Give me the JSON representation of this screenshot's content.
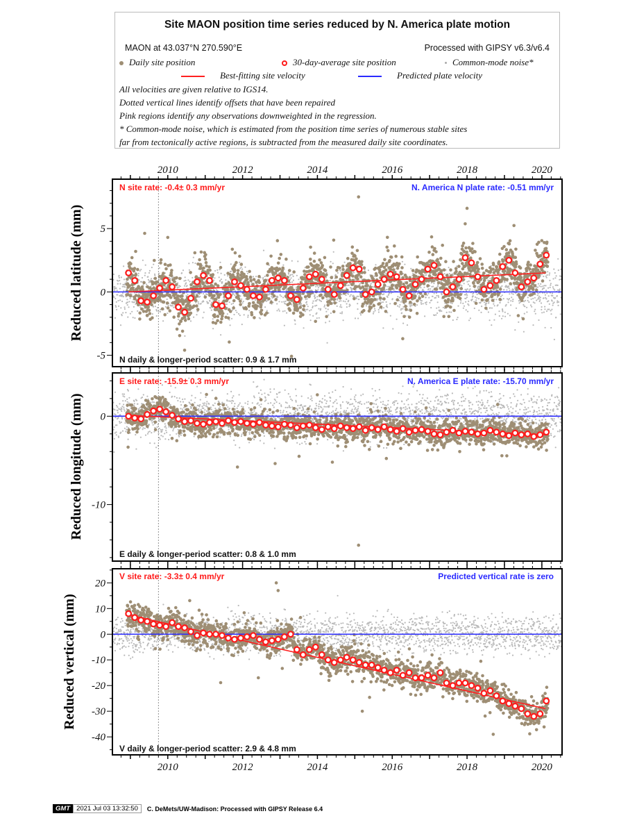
{
  "legend": {
    "title": "Site MAON position time series reduced by N. America plate motion",
    "site_location": "MAON at 43.037°N 270.590°E",
    "processing": "Processed with GIPSY v6.3/v6.4",
    "daily_label": "Daily site position",
    "avg_label": "30-day-average site position",
    "cm_label": "Common-mode noise*",
    "best_fit_label": "Best-fitting site velocity",
    "plate_label": "Predicted plate velocity",
    "note1": "All velocities are given relative to IGS14.",
    "note2": "Dotted vertical lines identify offsets that have been repaired",
    "note3": "Pink regions identify any observations downweighted in the regression.",
    "note4": "* Common-mode noise, which is estimated from the position time series of numerous stable sites",
    "note5": "far from tectonically active regions, is subtracted from the measured daily site coordinates.",
    "colors": {
      "daily": "#9e8e74",
      "avg": "#ff1a1a",
      "cm": "#b9b9b9",
      "fit": "#ff2020",
      "plate": "#2a2aff"
    }
  },
  "footer": {
    "logo": "GMT",
    "timestamp": "2021 Jul 03 13:32:50",
    "credit": "C. DeMets/UW-Madison: Processed with GIPSY Release 6.4"
  },
  "chart_data": [
    {
      "type": "scatter",
      "ylabel": "Reduced latitude (mm)",
      "site_rate": "N site rate:  -0.4± 0.3 mm/yr",
      "plate_rate": "N. America N plate rate: -0.51 mm/yr",
      "scatter_text": "N daily & longer-period scatter:   0.9 &   1.7 mm",
      "xlim": [
        2008.52,
        2020.54
      ],
      "ylim": [
        -5.9,
        8.9
      ],
      "yticks": [
        -5,
        0,
        5
      ],
      "xticks": [
        2010,
        2012,
        2014,
        2016,
        2018,
        2020
      ],
      "offset_epochs": [
        2009.75
      ],
      "avg_start": 2008.95,
      "avg_step_yr": 0.1667,
      "avg_values": [
        1.5,
        0.9,
        -0.7,
        -0.8,
        -0.3,
        0.3,
        0.9,
        0.4,
        -1.2,
        -1.6,
        -0.5,
        0.8,
        1.3,
        0.9,
        -1.0,
        -1.1,
        -0.3,
        0.8,
        0.5,
        0.2,
        -0.3,
        -0.4,
        0.2,
        0.9,
        1.1,
        0.9,
        -0.3,
        -0.6,
        0.3,
        1.2,
        1.4,
        1.0,
        0.2,
        -0.2,
        0.5,
        1.3,
        1.9,
        1.8,
        -0.2,
        0.0,
        0.6,
        1.0,
        1.4,
        1.2,
        0.2,
        -0.3,
        0.6,
        1.0,
        1.8,
        2.1,
        1.2,
        0.0,
        0.4,
        1.0,
        2.7,
        2.3,
        1.2,
        0.2,
        0.5,
        0.9,
        2.0,
        2.5,
        1.5,
        0.4,
        0.8,
        1.1,
        2.2,
        2.9
      ],
      "fit_line": [
        [
          2008.95,
          0.0
        ],
        [
          2020.1,
          1.5
        ]
      ],
      "daily_scatter_mm": 0.9,
      "cm_scatter_mm": 1.0,
      "outliers": [
        [
          2015.1,
          7.5
        ],
        [
          2018.0,
          6.6
        ],
        [
          2010.0,
          4.3
        ],
        [
          2010.45,
          -4.6
        ]
      ]
    },
    {
      "type": "scatter",
      "ylabel": "Reduced longitude (mm)",
      "site_rate": "E site rate: -15.9± 0.3 mm/yr",
      "plate_rate": "N. America E plate rate: -15.70 mm/yr",
      "scatter_text": "E daily & longer-period scatter:   0.8 &   1.0 mm",
      "xlim": [
        2008.52,
        2020.54
      ],
      "ylim": [
        -16.4,
        4.9
      ],
      "yticks": [
        -10,
        0
      ],
      "xticks": [
        2010,
        2012,
        2014,
        2016,
        2018,
        2020
      ],
      "offset_epochs": [
        2009.75
      ],
      "avg_start": 2008.95,
      "avg_step_yr": 0.1667,
      "avg_values": [
        0.0,
        -0.2,
        -0.3,
        0.2,
        0.6,
        0.8,
        0.5,
        0.1,
        -0.3,
        -0.6,
        -0.5,
        -0.8,
        -0.9,
        -0.7,
        -0.6,
        -0.8,
        -0.5,
        -0.7,
        -0.6,
        -0.8,
        -0.9,
        -0.7,
        -1.0,
        -1.1,
        -1.2,
        -0.9,
        -1.0,
        -1.3,
        -1.1,
        -1.0,
        -1.3,
        -1.5,
        -1.2,
        -1.4,
        -1.1,
        -1.3,
        -1.4,
        -1.2,
        -1.6,
        -1.3,
        -1.5,
        -1.2,
        -1.5,
        -1.7,
        -1.4,
        -1.8,
        -1.6,
        -1.5,
        -1.7,
        -2.0,
        -2.1,
        -1.8,
        -1.6,
        -1.9,
        -1.7,
        -1.8,
        -2.0,
        -1.9,
        -1.6,
        -1.8,
        -2.0,
        -2.2,
        -1.9,
        -2.1,
        -2.0,
        -2.3,
        -2.1,
        -1.8
      ],
      "fit_line": [
        [
          2008.95,
          0.1
        ],
        [
          2020.1,
          -2.1
        ]
      ],
      "daily_scatter_mm": 0.8,
      "cm_scatter_mm": 1.3,
      "outliers": [
        [
          2015.1,
          -14.6
        ],
        [
          2014.4,
          -5.2
        ]
      ]
    },
    {
      "type": "scatter",
      "ylabel": "Reduced vertical (mm)",
      "site_rate": "V site rate:  -3.3± 0.4 mm/yr",
      "plate_rate": "Predicted vertical rate is zero",
      "scatter_text": "V daily & longer-period scatter:   2.9 &   4.8 mm",
      "xlim": [
        2008.52,
        2020.54
      ],
      "ylim": [
        -47,
        25.5
      ],
      "yticks": [
        -40,
        -30,
        -20,
        -10,
        0,
        10,
        20
      ],
      "xticks": [
        2010,
        2012,
        2014,
        2016,
        2018,
        2020
      ],
      "offset_epochs": [
        2009.75
      ],
      "avg_start": 2008.95,
      "avg_step_yr": 0.1667,
      "avg_values": [
        8,
        6.5,
        5.5,
        5,
        4,
        3.5,
        3,
        4.5,
        3,
        2.5,
        1,
        -0.5,
        0.5,
        0,
        0,
        -0.5,
        -1.5,
        -2,
        -1.5,
        -1,
        -0.5,
        -2,
        -3,
        -2.5,
        -2,
        -1,
        0,
        -6,
        -8,
        -6,
        -5,
        -8,
        -10,
        -11,
        -10,
        -9,
        -10,
        -11,
        -12,
        -12,
        -13,
        -14,
        -15,
        -14,
        -16,
        -15,
        -17,
        -17,
        -16,
        -17,
        -15,
        -19,
        -20,
        -19,
        -19,
        -20,
        -21,
        -23,
        -22,
        -24,
        -26,
        -27,
        -28,
        -29,
        -31,
        -32,
        -31,
        -26
      ],
      "fit_line": [
        [
          2008.95,
          7.5
        ],
        [
          2020.1,
          -29
        ]
      ],
      "daily_scatter_mm": 2.9,
      "cm_scatter_mm": 3.5,
      "outliers": [
        [
          2012.9,
          20
        ],
        [
          2012.95,
          17
        ],
        [
          2015.2,
          -30
        ],
        [
          2018.7,
          -39
        ]
      ]
    }
  ]
}
